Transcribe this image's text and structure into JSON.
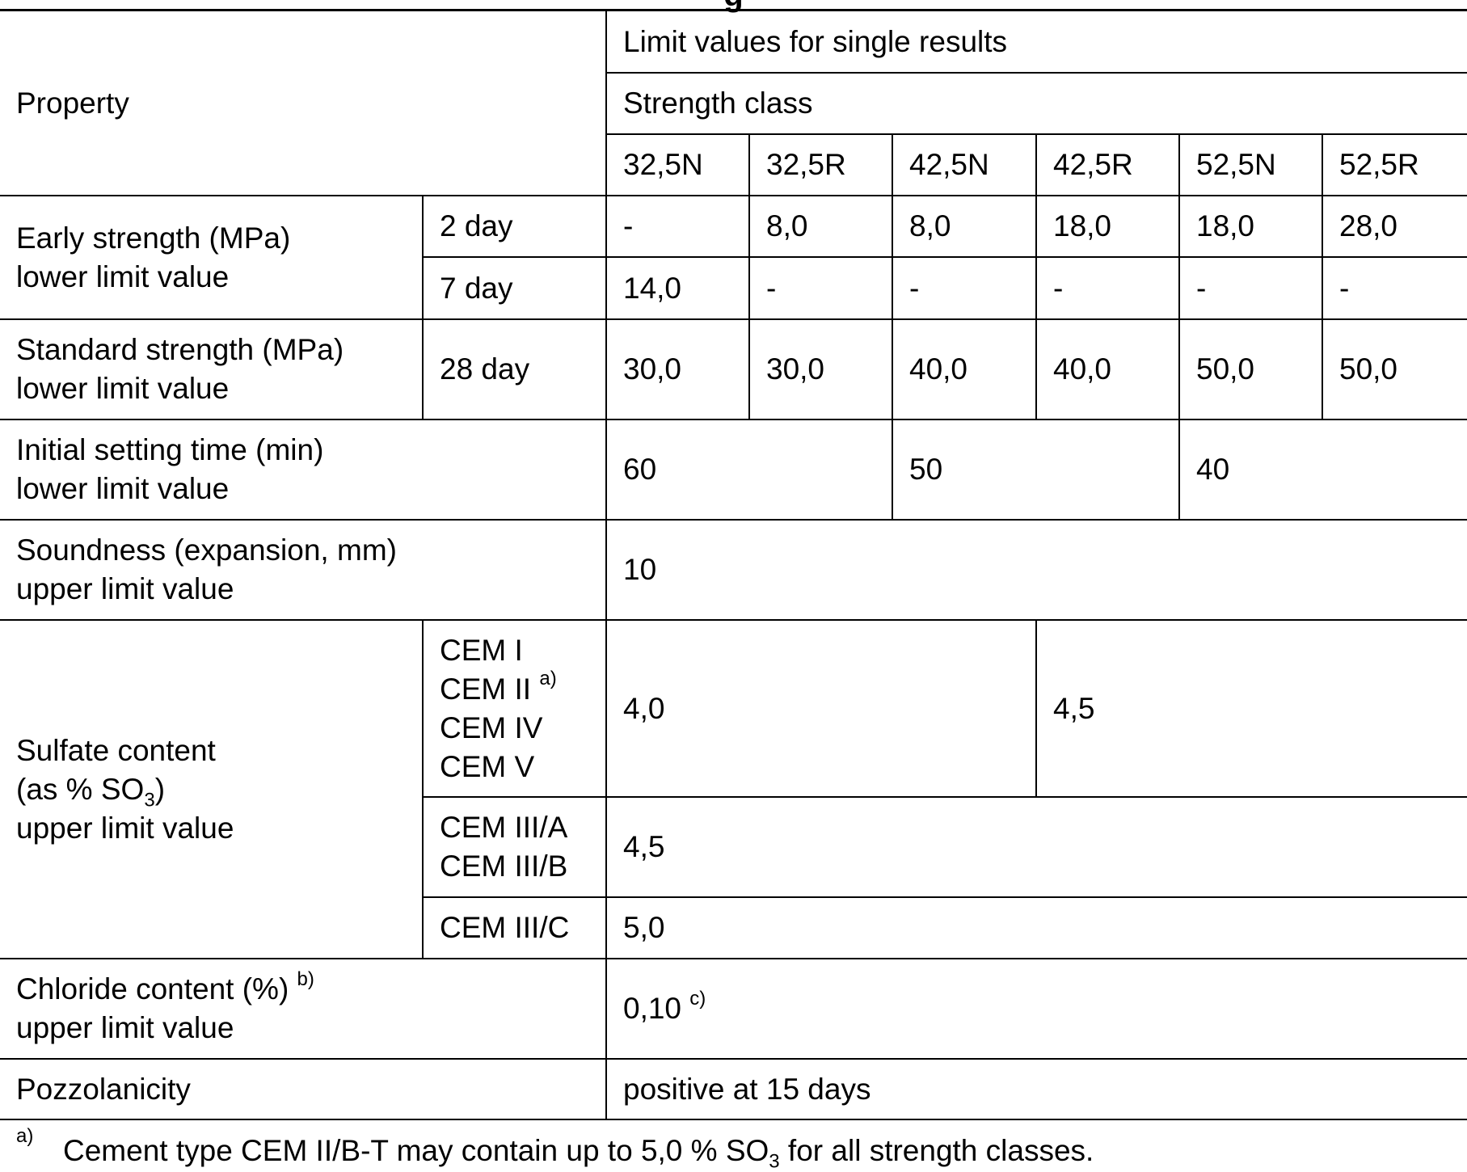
{
  "title_fragment": "g",
  "header": {
    "property": "Property",
    "limit_values": "Limit values for single results",
    "strength_class": "Strength class",
    "classes": [
      "32,5N",
      "32,5R",
      "42,5N",
      "42,5R",
      "52,5N",
      "52,5R"
    ]
  },
  "rows": {
    "early": {
      "label_line1": "Early strength (MPa)",
      "label_line2": "lower limit value",
      "age_2": "2 day",
      "age_7": "7 day",
      "values_2day": [
        "-",
        "8,0",
        "8,0",
        "18,0",
        "18,0",
        "28,0"
      ],
      "values_7day": [
        "14,0",
        "-",
        "-",
        "-",
        "-",
        "-"
      ]
    },
    "standard": {
      "label_line1": "Standard strength (MPa)",
      "label_line2": "lower limit value",
      "age": "28 day",
      "values": [
        "30,0",
        "30,0",
        "40,0",
        "40,0",
        "50,0",
        "50,0"
      ]
    },
    "setting": {
      "label_line1": "Initial setting time (min)",
      "label_line2": "lower limit value",
      "values": [
        "60",
        "50",
        "40"
      ]
    },
    "soundness": {
      "label_line1": "Soundness (expansion, mm)",
      "label_line2": "upper limit value",
      "value": "10"
    },
    "sulfate": {
      "label_line1": "Sulfate content",
      "label_line2_pre": "(as % SO",
      "label_line2_sub": "3",
      "label_line2_post": ")",
      "label_line3": "upper limit value",
      "group1_types": [
        "CEM I",
        "CEM II",
        "CEM IV",
        "CEM V"
      ],
      "group1_note": "a)",
      "group1_values": [
        "4,0",
        "4,5"
      ],
      "group2_types": [
        "CEM III/A",
        "CEM III/B"
      ],
      "group2_value": "4,5",
      "group3_type": "CEM III/C",
      "group3_value": "5,0"
    },
    "chloride": {
      "label_line1": "Chloride content (%)",
      "label_note": "b)",
      "label_line2": "upper limit value",
      "value": "0,10",
      "value_note": "c)"
    },
    "pozzolanicity": {
      "label": "Pozzolanicity",
      "value": "positive at 15 days"
    }
  },
  "footnote": {
    "mark": "a)",
    "text_pre": "Cement type CEM II/B-T may contain up to 5,0 % SO",
    "text_sub": "3",
    "text_post": " for all strength classes."
  }
}
